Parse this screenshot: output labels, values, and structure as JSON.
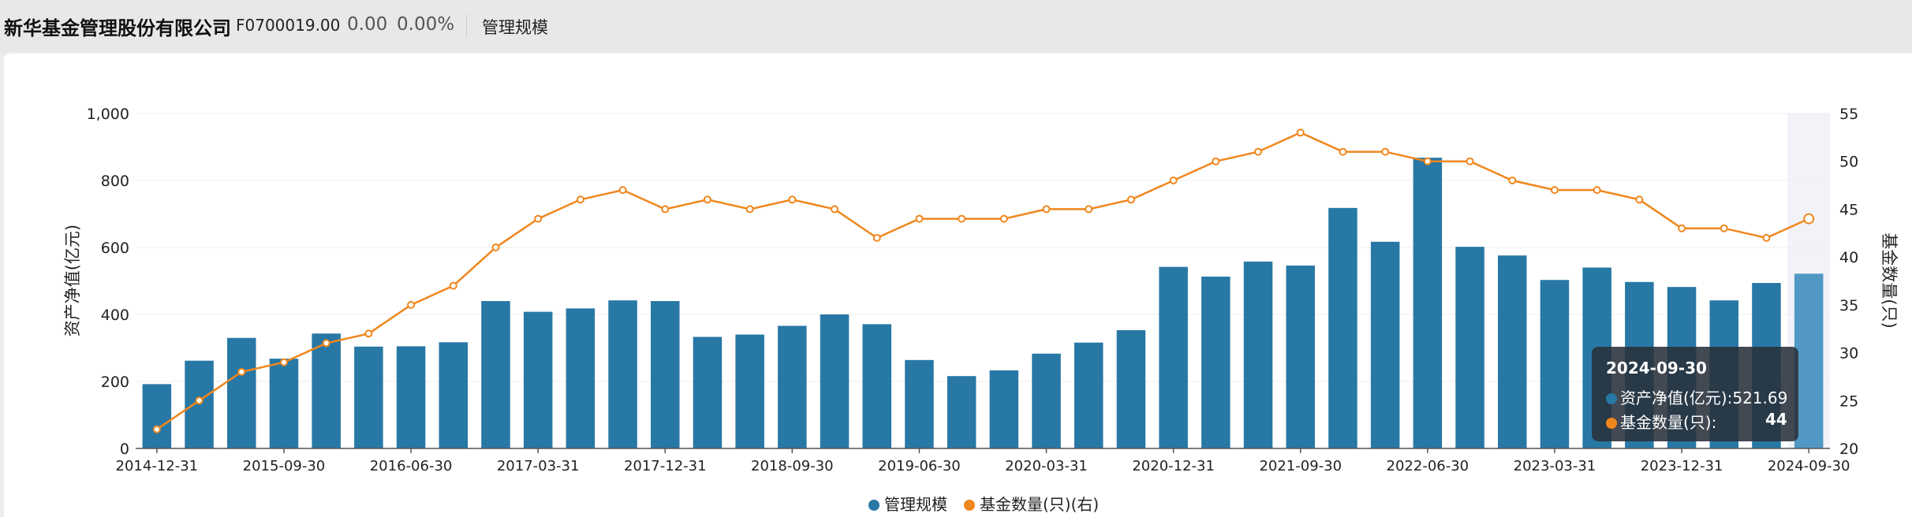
{
  "header": {
    "company": "新华基金管理股份有限公司",
    "code": "F0700019.00",
    "value": "0.00",
    "pct": "0.00%",
    "tab": "管理规模"
  },
  "tooltip": {
    "date": "2024-09-30",
    "bar_label": "资产净值(亿元):",
    "bar_value": "521.69",
    "line_label": "基金数量(只):",
    "line_value": "44"
  },
  "legend": {
    "bar": "管理规模",
    "line": "基金数量(只)(右)"
  },
  "colors": {
    "bar": "#2878a5",
    "bar_highlight": "#5198c4",
    "line": "#f0871e"
  },
  "chart_data": {
    "type": "bar",
    "ylabel_left": "资产净值(亿元)",
    "ylabel_right": "基金数量(只)",
    "ylim_left": [
      0,
      1000
    ],
    "ylim_right": [
      20,
      55
    ],
    "yticks_left": [
      "0",
      "200",
      "400",
      "600",
      "800",
      "1,000"
    ],
    "yticks_right": [
      "20",
      "25",
      "30",
      "35",
      "40",
      "45",
      "50",
      "55"
    ],
    "xticks": [
      "2014-12-31",
      "2015-09-30",
      "2016-06-30",
      "2017-03-31",
      "2017-12-31",
      "2018-09-30",
      "2019-06-30",
      "2020-03-31",
      "2020-12-31",
      "2021-09-30",
      "2022-06-30",
      "2023-03-31",
      "2023-12-31",
      "2024-09-30"
    ],
    "categories": [
      "2014-12-31",
      "2015-03-31",
      "2015-06-30",
      "2015-09-30",
      "2015-12-31",
      "2016-03-31",
      "2016-06-30",
      "2016-09-30",
      "2016-12-31",
      "2017-03-31",
      "2017-06-30",
      "2017-09-30",
      "2017-12-31",
      "2018-03-31",
      "2018-06-30",
      "2018-09-30",
      "2018-12-31",
      "2019-03-31",
      "2019-06-30",
      "2019-09-30",
      "2019-12-31",
      "2020-03-31",
      "2020-06-30",
      "2020-09-30",
      "2020-12-31",
      "2021-03-31",
      "2021-06-30",
      "2021-09-30",
      "2021-12-31",
      "2022-03-31",
      "2022-06-30",
      "2022-09-30",
      "2022-12-31",
      "2023-03-31",
      "2023-06-30",
      "2023-09-30",
      "2023-12-31",
      "2024-03-31",
      "2024-06-30",
      "2024-09-30"
    ],
    "series": [
      {
        "name": "管理规模",
        "axis": "left",
        "type": "bar",
        "values": [
          192,
          262,
          330,
          268,
          343,
          304,
          305,
          317,
          440,
          408,
          418,
          442,
          440,
          333,
          340,
          366,
          400,
          371,
          264,
          216,
          233,
          283,
          316,
          353,
          542,
          513,
          558,
          546,
          718,
          617,
          868,
          602,
          576,
          503,
          540,
          497,
          482,
          442,
          494,
          521.69
        ]
      },
      {
        "name": "基金数量(只)(右)",
        "axis": "right",
        "type": "line",
        "values": [
          22,
          25,
          28,
          29,
          31,
          32,
          35,
          37,
          41,
          44,
          46,
          47,
          45,
          46,
          45,
          46,
          45,
          42,
          44,
          44,
          44,
          45,
          45,
          46,
          48,
          50,
          51,
          53,
          51,
          51,
          50,
          50,
          48,
          47,
          47,
          46,
          43,
          43,
          42,
          44
        ]
      }
    ],
    "highlight": "2024-09-30",
    "grid": true,
    "legend_position": "bottom"
  }
}
